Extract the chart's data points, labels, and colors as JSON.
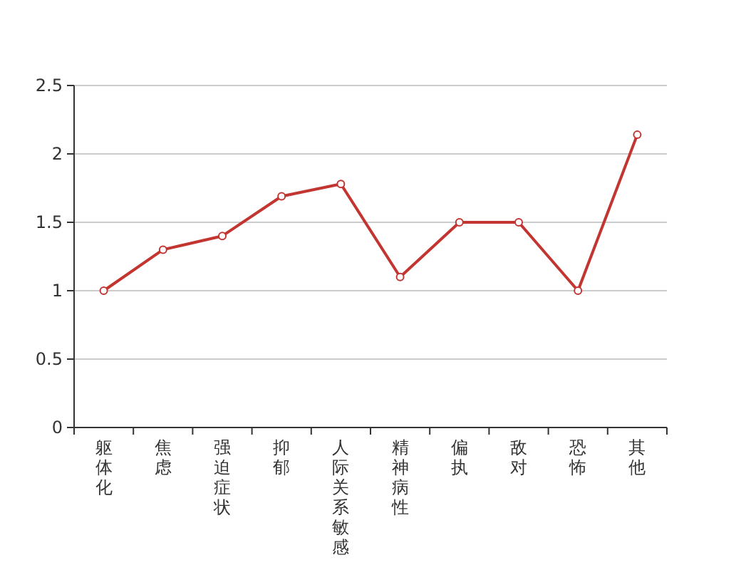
{
  "chart_data": {
    "type": "line",
    "categories": [
      "躯体化",
      "焦虑",
      "强迫症状",
      "抑郁",
      "人际关系敏感",
      "精神病性",
      "偏执",
      "敌对",
      "恐怖",
      "其他"
    ],
    "series": [
      {
        "color": "#c23531",
        "values": [
          1,
          1.3,
          1.4,
          1.69,
          1.78,
          1.1,
          1.5,
          1.5,
          1.0,
          2.14
        ]
      }
    ],
    "ylim": [
      0,
      2.5
    ],
    "yticks": [
      0,
      {
        "value": 0.5,
        "label": "0.5"
      },
      1,
      {
        "value": 1.5,
        "label": "1.5"
      },
      2,
      {
        "value": 2.5,
        "label": "2.5"
      }
    ],
    "grid": "y",
    "marker": "circle",
    "line_style": "solid"
  }
}
